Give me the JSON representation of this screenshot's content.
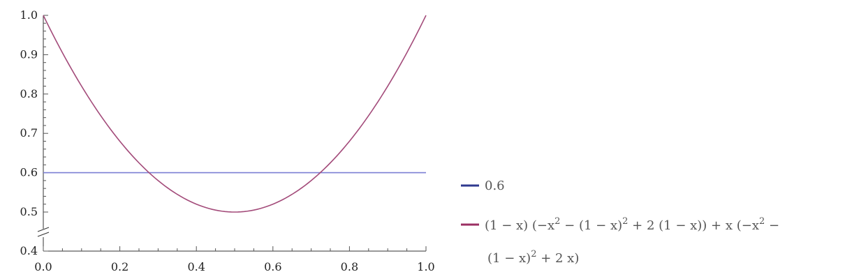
{
  "chart_data": {
    "type": "line",
    "title": "",
    "xlabel": "",
    "ylabel": "",
    "xlim": [
      0.0,
      1.0
    ],
    "ylim": [
      0.4,
      1.0
    ],
    "y_axis_break": true,
    "grid": false,
    "legend_position": "right",
    "x_ticks": [
      "0.0",
      "0.2",
      "0.4",
      "0.6",
      "0.8",
      "1.0"
    ],
    "y_ticks": [
      "0.4",
      "0.5",
      "0.6",
      "0.7",
      "0.8",
      "0.9",
      "1.0"
    ],
    "series": [
      {
        "name": "0.6",
        "color": "#7b7fd4",
        "legend_color": "#2f3a8f",
        "x": [
          0.0,
          1.0
        ],
        "y": [
          0.6,
          0.6
        ]
      },
      {
        "name": "(1 − x) (−x^2 − (1 − x)^2 + 2 (1 − x)) + x (−x^2 − (1 − x)^2 + 2 x)",
        "color": "#a34b7a",
        "legend_color": "#9b2f63",
        "x": [
          0.0,
          0.05,
          0.1,
          0.15,
          0.2,
          0.25,
          0.3,
          0.35,
          0.4,
          0.45,
          0.5,
          0.55,
          0.6,
          0.65,
          0.7,
          0.75,
          0.8,
          0.85,
          0.9,
          0.95,
          1.0
        ],
        "y": [
          1.0,
          0.905,
          0.82,
          0.745,
          0.68,
          0.625,
          0.58,
          0.545,
          0.52,
          0.505,
          0.5,
          0.505,
          0.52,
          0.545,
          0.58,
          0.625,
          0.68,
          0.745,
          0.82,
          0.905,
          1.0
        ]
      }
    ]
  },
  "legend": {
    "item1": "0.6",
    "item2_line1": {
      "p1": "(1 − x) (−x",
      "sup1": "2",
      "p2": " − (1 − x)",
      "sup2": "2",
      "p3": " + 2 (1 − x)) + x (−x",
      "sup3": "2",
      "p4": " −"
    },
    "item2_line2": {
      "p1": "(1 − x)",
      "sup1": "2",
      "p2": " + 2 x)"
    }
  }
}
